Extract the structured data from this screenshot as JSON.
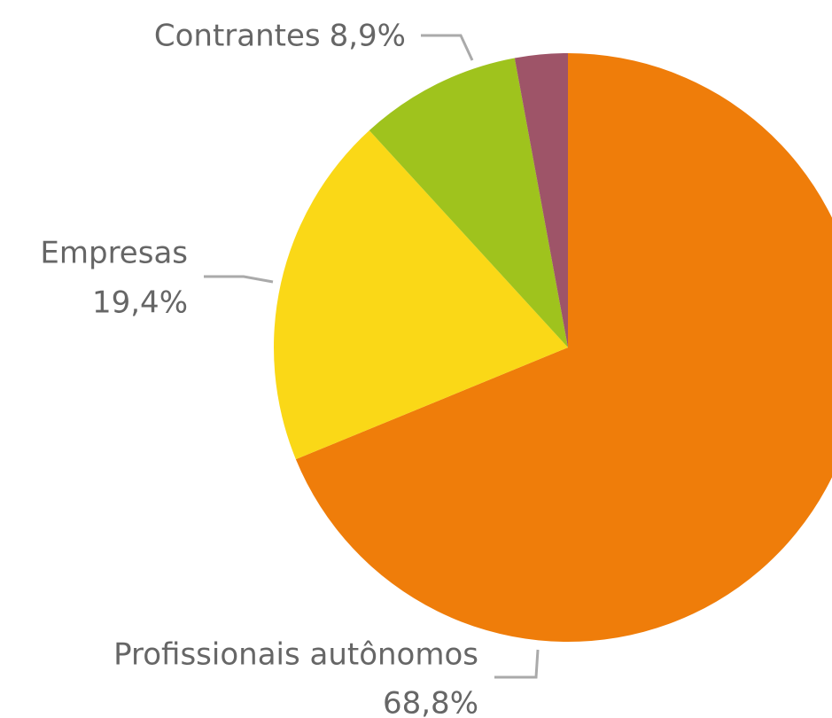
{
  "chart_data": {
    "type": "pie",
    "categories": [
      "Profissionais autônomos",
      "Empresas",
      "Contrantes",
      null
    ],
    "values": [
      68.8,
      19.4,
      8.9,
      2.9
    ],
    "value_labels": [
      "68,8%",
      "19,4%",
      "8,9%",
      null
    ],
    "colors": [
      "#ef7d0a",
      "#fad817",
      "#9fc31d",
      "#9e5468"
    ]
  }
}
